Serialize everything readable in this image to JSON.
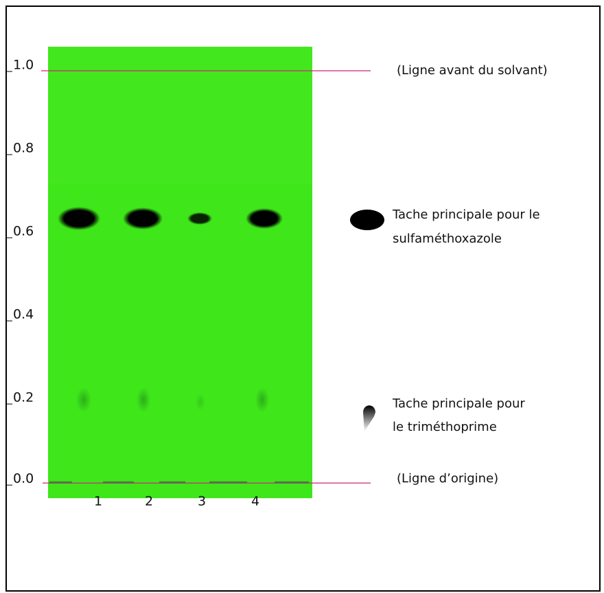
{
  "scale": {
    "labels": [
      "1.0",
      "0.8",
      "0.6",
      "0.4",
      "0.2",
      "0.0"
    ]
  },
  "lanes": {
    "labels": [
      "1",
      "2",
      "3",
      "4"
    ]
  },
  "annotations": {
    "solvent_front": "(Ligne avant du solvant)",
    "sulfamethoxazole": [
      "Tache principale pour le",
      "sulfaméthoxazole"
    ],
    "trimethoprim": [
      "Tache principale pour",
      "le triméthoprime"
    ],
    "origin": "(Ligne d’origine)"
  }
}
